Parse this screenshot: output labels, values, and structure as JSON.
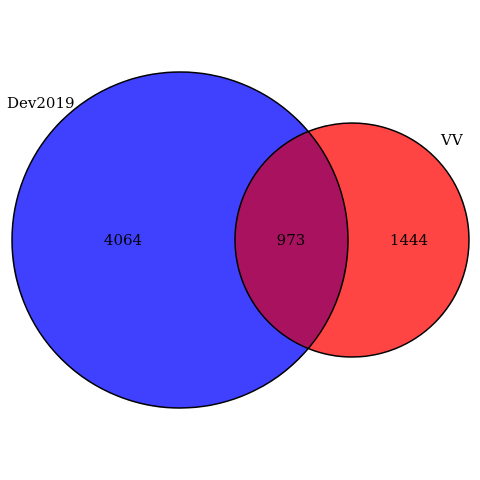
{
  "venn": {
    "sets": [
      {
        "label": "Dev2019",
        "color": "#4040ff"
      },
      {
        "label": "VV",
        "color": "#ff4444"
      }
    ],
    "overlap_color": "#a8125e",
    "regions": {
      "left_only": "4064",
      "intersection": "973",
      "right_only": "1444"
    }
  }
}
